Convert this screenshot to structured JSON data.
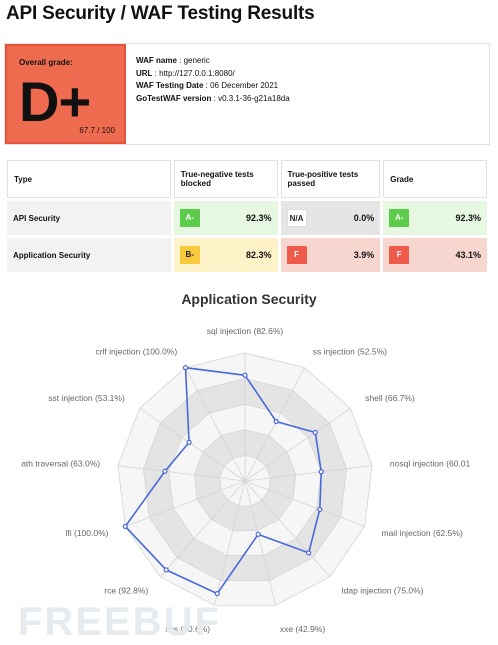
{
  "page": {
    "title": "API Security / WAF Testing Results"
  },
  "summary": {
    "grade_caption": "Overall grade:",
    "grade": "D+",
    "score": "67.7 / 100",
    "grade_color": "#ef6b4f",
    "info": [
      {
        "label": "WAF name",
        "value": " : generic"
      },
      {
        "label": "URL",
        "value": " : http://127.0.0.1:8080/"
      },
      {
        "label": "WAF Testing Date",
        "value": " : 06 December 2021"
      },
      {
        "label": "GoTestWAF version",
        "value": " : v0.3.1-36-g21a18da"
      }
    ]
  },
  "table": {
    "headers": [
      "Type",
      "True-negative tests blocked",
      "True-positive tests passed",
      "Grade"
    ],
    "rows": [
      {
        "type": "API Security",
        "tn_grade": "A-",
        "tn_pct": "92.3%",
        "tp_grade": "N/A",
        "tp_pct": "0.0%",
        "grade": "A-",
        "grade_pct": "92.3%"
      },
      {
        "type": "Application Security",
        "tn_grade": "B-",
        "tn_pct": "82.3%",
        "tp_grade": "F",
        "tp_pct": "3.9%",
        "grade": "F",
        "grade_pct": "43.1%"
      }
    ]
  },
  "chart_data": {
    "type": "radar",
    "title": "Application Security",
    "categories": [
      "sql injection",
      "ss injection",
      "shell",
      "nosql injection",
      "mail injection",
      "ldap injection",
      "xxe",
      "xss",
      "rce",
      "lfi",
      "ath traversal",
      "sst injection",
      "crlf injection"
    ],
    "labels": [
      "sql injection (82.6%)",
      "ss injection (52.5%)",
      "shell (66.7%)",
      "nosql injection (60.01",
      "mail injection (62.5%)",
      "ldap injection (75.0%)",
      "xxe (42.9%)",
      "xss (90.6%)",
      "rce (92.8%)",
      "lfi (100.0%)",
      "ath traversal (63.0%)",
      "sst injection (53.1%)",
      "crlf injection (100.0%)"
    ],
    "values": [
      82.6,
      52.5,
      66.7,
      60.0,
      62.5,
      75.0,
      42.9,
      90.6,
      92.8,
      100.0,
      63.0,
      53.1,
      100.0
    ],
    "range": [
      0,
      100
    ],
    "rings": 5,
    "line_color": "#4a68d8"
  },
  "watermark": "FREEBUF"
}
